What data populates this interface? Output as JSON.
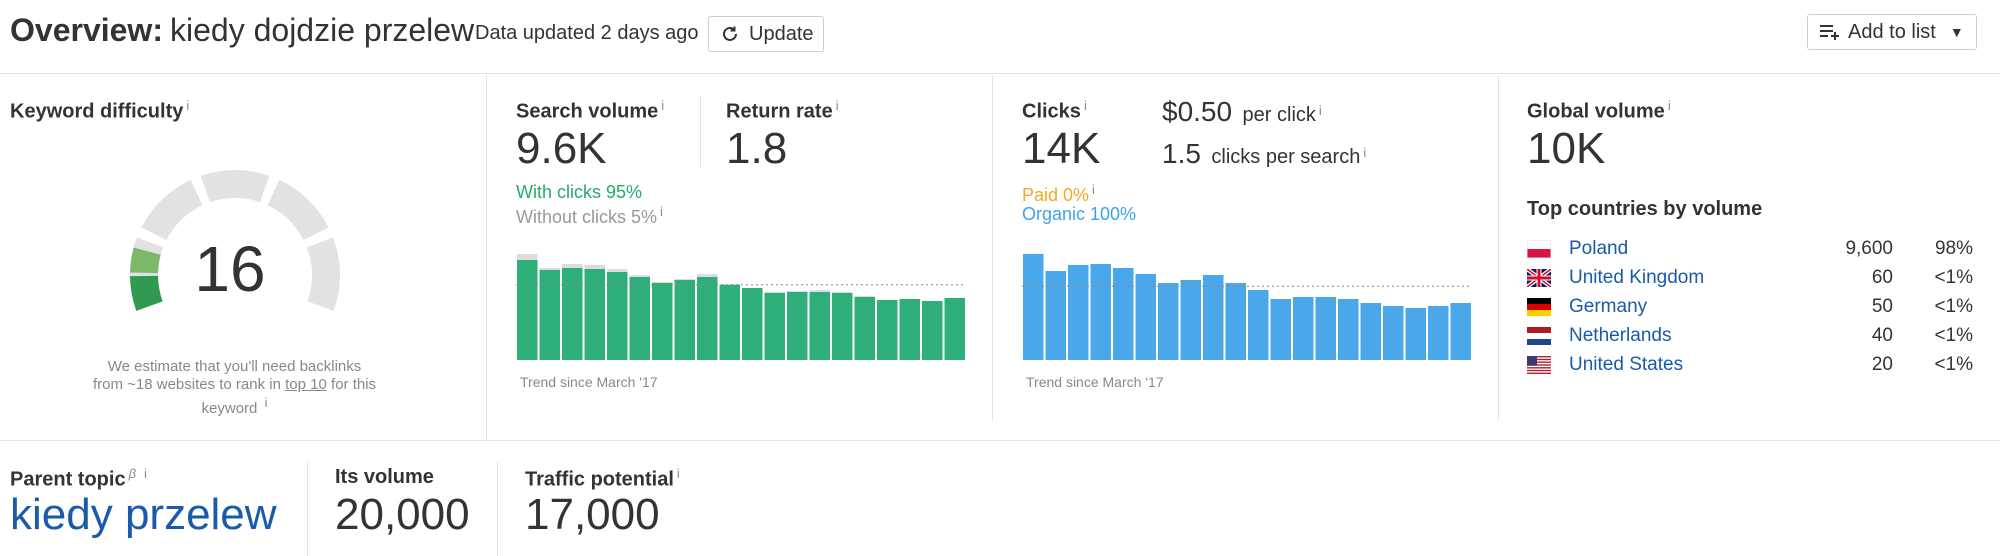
{
  "header": {
    "title_prefix": "Overview:",
    "keyword": "kiedy dojdzie przelew",
    "data_updated": "Data updated 2 days ago",
    "update_label": "Update",
    "add_to_list_label": "Add to list"
  },
  "keyword_difficulty": {
    "label": "Keyword difficulty",
    "value": "16",
    "value_numeric": 16,
    "note_pre": "We estimate that you'll need backlinks from ~18 websites to rank in",
    "note_link": "top 10",
    "note_post": "for this keyword"
  },
  "search_volume": {
    "label": "Search volume",
    "value": "9.6K",
    "return_rate_label": "Return rate",
    "return_rate_value": "1.8",
    "with_clicks": "With clicks 95%",
    "without_clicks": "Without clicks 5%",
    "trend_label": "Trend since March '17"
  },
  "clicks": {
    "label": "Clicks",
    "value": "14K",
    "per_click_value": "$0.50",
    "per_click_label": "per click",
    "cps_value": "1.5",
    "cps_label": "clicks per search",
    "paid": "Paid 0%",
    "organic": "Organic 100%",
    "trend_label": "Trend since March '17"
  },
  "global_volume": {
    "label": "Global volume",
    "value": "10K",
    "top_countries_label": "Top countries by volume",
    "countries": [
      {
        "name": "Poland",
        "volume": "9,600",
        "pct": "98%"
      },
      {
        "name": "United Kingdom",
        "volume": "60",
        "pct": "<1%"
      },
      {
        "name": "Germany",
        "volume": "50",
        "pct": "<1%"
      },
      {
        "name": "Netherlands",
        "volume": "40",
        "pct": "<1%"
      },
      {
        "name": "United States",
        "volume": "20",
        "pct": "<1%"
      }
    ]
  },
  "parent_topic": {
    "label": "Parent topic",
    "beta": "β",
    "value": "kiedy przelew",
    "its_volume_label": "Its volume",
    "its_volume_value": "20,000",
    "traffic_potential_label": "Traffic potential",
    "traffic_potential_value": "17,000"
  },
  "info_glyph": "i",
  "chart_data": [
    {
      "type": "bar",
      "series": [
        {
          "values": [
            100,
            90,
            92,
            91,
            88,
            83,
            77,
            80,
            83,
            75,
            72,
            67,
            68,
            68,
            67,
            63,
            60,
            61,
            59,
            62
          ]
        },
        {
          "values": [
            106,
            92,
            96,
            95,
            91,
            85,
            78,
            81,
            86,
            76,
            72,
            68,
            69,
            70,
            68,
            64,
            60,
            61,
            59,
            62
          ]
        }
      ],
      "colors": [
        "#2eae79",
        "#dcdcdc"
      ],
      "grid": false
    },
    {
      "type": "bar",
      "series": [
        {
          "values": [
            106,
            89,
            95,
            96,
            92,
            86,
            77,
            80,
            85,
            77,
            70,
            61,
            63,
            63,
            61,
            57,
            54,
            52,
            54,
            57
          ]
        }
      ],
      "colors": [
        "#4aa8ea"
      ],
      "grid": false
    }
  ]
}
